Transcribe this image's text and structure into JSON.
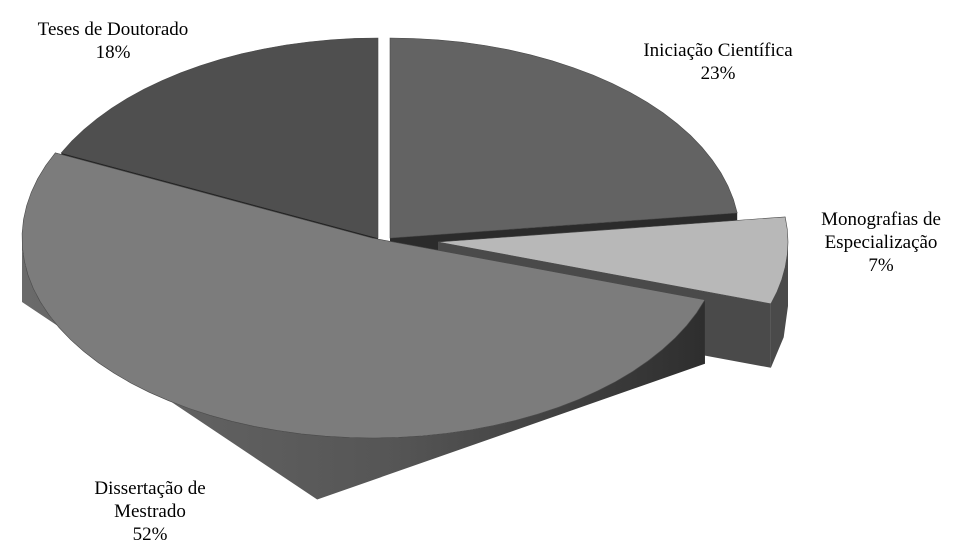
{
  "chart_data": {
    "type": "pie",
    "style": "3d-exploded",
    "title": "",
    "slices": [
      {
        "label": [
          "Iniciação Científica"
        ],
        "percent_label": "23%",
        "value": 23,
        "top_color": "#636363",
        "side_color": "#2b2b2b"
      },
      {
        "label": [
          "Monografias de",
          "Especialização"
        ],
        "percent_label": "7%",
        "value": 7,
        "top_color": "#b8b8b8",
        "side_color": "#4a4a4a"
      },
      {
        "label": [
          "Dissertação de",
          "Mestrado"
        ],
        "percent_label": "52%",
        "value": 52,
        "top_color": "#7c7c7c",
        "side_color": "#555555"
      },
      {
        "label": [
          "Teses de Doutorado"
        ],
        "percent_label": "18%",
        "value": 18,
        "top_color": "#4f4f4f",
        "side_color": "#222222"
      }
    ]
  }
}
